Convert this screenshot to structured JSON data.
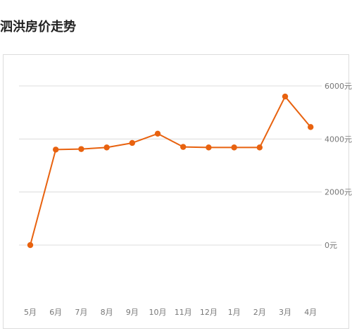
{
  "page": {
    "title": "泗洪房价走势"
  },
  "chart_data": {
    "type": "line",
    "title": "泗洪房价走势",
    "xlabel": "",
    "ylabel": "",
    "categories": [
      "5月",
      "6月",
      "7月",
      "8月",
      "9月",
      "10月",
      "11月",
      "12月",
      "1月",
      "2月",
      "3月",
      "4月"
    ],
    "series": [
      {
        "name": "",
        "values": [
          0,
          3600,
          3620,
          3680,
          3850,
          4200,
          3700,
          3680,
          3680,
          3680,
          5600,
          4450
        ],
        "color": "#e8620f"
      }
    ],
    "y_ticks": [
      0,
      2000,
      4000,
      6000
    ],
    "y_tick_labels": [
      "0元",
      "2000元",
      "4000元",
      "6000元"
    ],
    "ylim": [
      0,
      6000
    ],
    "grid": true,
    "y_axis_position": "right",
    "colors": {
      "line": "#e8620f",
      "grid": "#dcdcdc",
      "frame": "#dcdcdc",
      "text": "#777777"
    }
  }
}
